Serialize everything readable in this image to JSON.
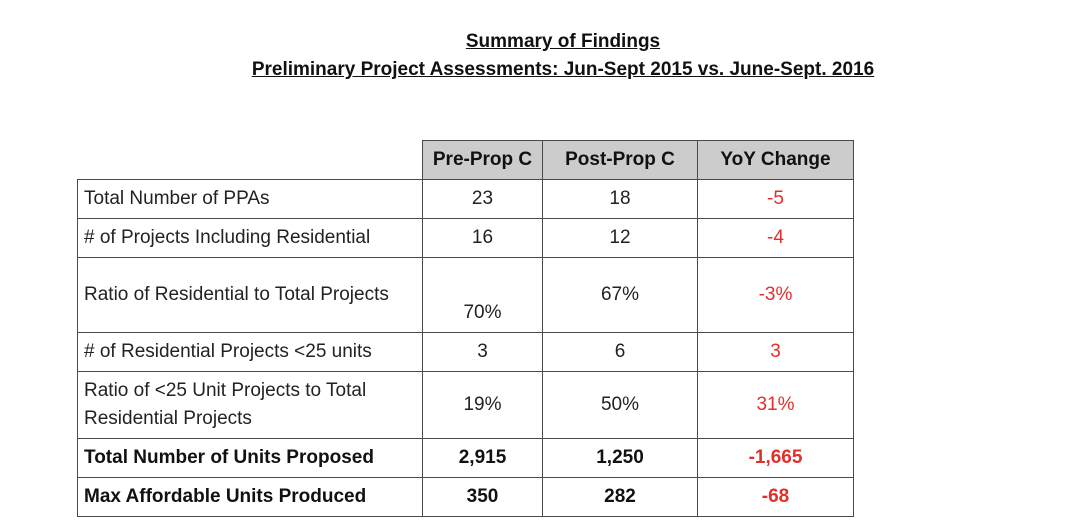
{
  "title": {
    "line1": "Summary of Findings",
    "line2": "Preliminary Project Assessments: Jun-Sept 2015 vs. June-Sept. 2016"
  },
  "table": {
    "headers": [
      "Pre-Prop C",
      "Post-Prop C",
      "YoY Change"
    ],
    "rows": [
      {
        "label": "Total Number of PPAs",
        "pre": "23",
        "post": "18",
        "change": "-5",
        "bold": false
      },
      {
        "label": "# of Projects Including Residential",
        "pre": "16",
        "post": "12",
        "change": "-4",
        "bold": false
      },
      {
        "label": "Ratio of Residential to Total Projects",
        "pre": "70%",
        "post": "67%",
        "change": "-3%",
        "bold": false
      },
      {
        "label": "# of Residential Projects <25 units",
        "pre": "3",
        "post": "6",
        "change": "3",
        "bold": false
      },
      {
        "label": "Ratio of <25 Unit Projects to Total Residential Projects",
        "pre": "19%",
        "post": "50%",
        "change": "31%",
        "bold": false
      },
      {
        "label": "Total Number of Units Proposed",
        "pre": "2,915",
        "post": "1,250",
        "change": "-1,665",
        "bold": true
      },
      {
        "label": "Max Affordable Units Produced",
        "pre": "350",
        "post": "282",
        "change": "-68",
        "bold": true
      }
    ]
  },
  "colors": {
    "header_bg": "#cccccc",
    "change_text": "#e0302a",
    "border": "#4a4a4a"
  }
}
